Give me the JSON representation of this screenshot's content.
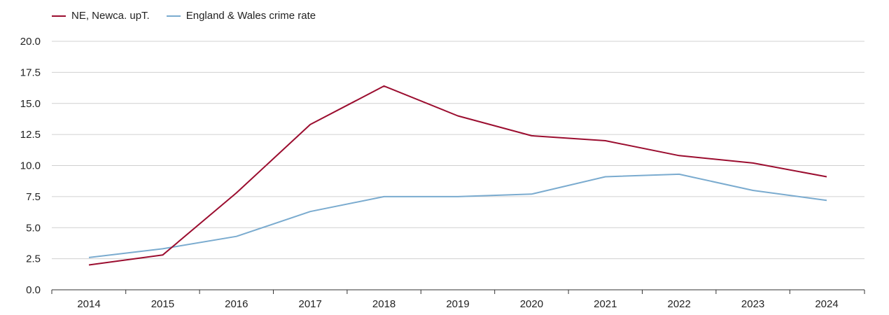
{
  "chart_data": {
    "type": "line",
    "title": "",
    "xlabel": "",
    "ylabel": "",
    "x": [
      "2014",
      "2015",
      "2016",
      "2017",
      "2018",
      "2019",
      "2020",
      "2021",
      "2022",
      "2023",
      "2024"
    ],
    "ylim": [
      0,
      20
    ],
    "yticks": [
      "0.0",
      "2.5",
      "5.0",
      "7.5",
      "10.0",
      "12.5",
      "15.0",
      "17.5",
      "20.0"
    ],
    "grid": true,
    "legend_position": "top-left",
    "series": [
      {
        "name": "NE, Newca. upT.",
        "color": "#9b0d2f",
        "values": [
          2.0,
          2.8,
          7.8,
          13.3,
          16.4,
          14.0,
          12.4,
          12.0,
          10.8,
          10.2,
          9.1
        ]
      },
      {
        "name": "England & Wales crime rate",
        "color": "#7aabcf",
        "values": [
          2.6,
          3.3,
          4.3,
          6.3,
          7.5,
          7.5,
          7.7,
          9.1,
          9.3,
          8.0,
          7.2
        ]
      }
    ]
  }
}
